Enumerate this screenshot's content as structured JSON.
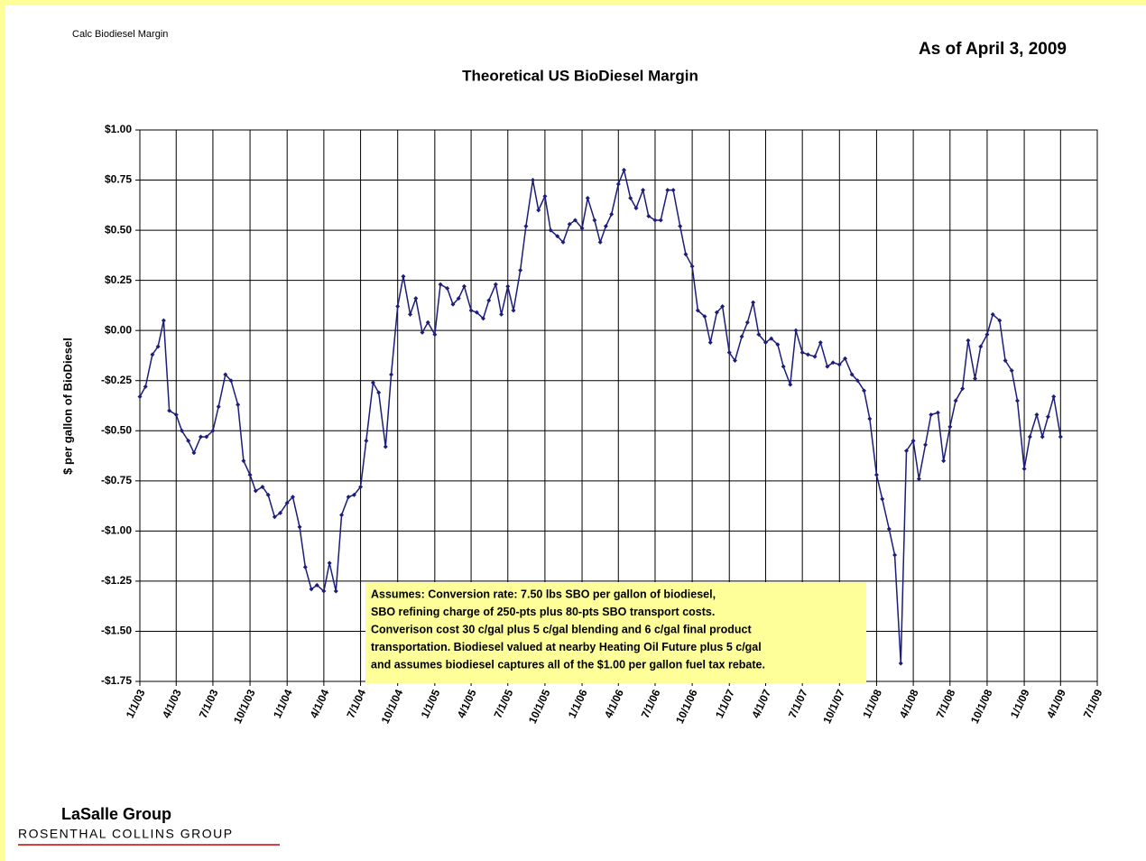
{
  "header": {
    "note": "Calc Biodiesel Margin",
    "as_of": "As of April 3, 2009"
  },
  "chart_data": {
    "type": "line",
    "title": "Theoretical US BioDiesel Margin",
    "y_label": "$ per gallon of BioDiesel",
    "annotation": [
      "Assumes: Conversion rate: 7.50 lbs SBO per gallon of biodiesel,",
      "SBO refining charge of 250-pts plus 80-pts SBO transport costs.",
      "Converison cost 30 c/gal plus 5 c/gal blending and 6 c/gal final product",
      "transportation.  Biodiesel valued at nearby Heating Oil Future plus 5 c/gal",
      "and assumes biodiesel captures all of the $1.00 per gallon fuel tax rebate."
    ],
    "x": [
      "2003-01-01",
      "2003-01-15",
      "2003-02-01",
      "2003-02-15",
      "2003-03-01",
      "2003-03-15",
      "2003-04-01",
      "2003-04-15",
      "2003-05-01",
      "2003-05-15",
      "2003-06-01",
      "2003-06-15",
      "2003-07-01",
      "2003-07-15",
      "2003-08-01",
      "2003-08-15",
      "2003-09-01",
      "2003-09-15",
      "2003-10-01",
      "2003-10-15",
      "2003-11-01",
      "2003-11-15",
      "2003-12-01",
      "2003-12-15",
      "2004-01-01",
      "2004-01-15",
      "2004-02-01",
      "2004-02-15",
      "2004-03-01",
      "2004-03-15",
      "2004-04-01",
      "2004-04-15",
      "2004-05-01",
      "2004-05-15",
      "2004-06-01",
      "2004-06-15",
      "2004-07-01",
      "2004-07-15",
      "2004-08-01",
      "2004-08-15",
      "2004-09-01",
      "2004-09-15",
      "2004-10-01",
      "2004-10-15",
      "2004-11-01",
      "2004-11-15",
      "2004-12-01",
      "2004-12-15",
      "2005-01-01",
      "2005-01-15",
      "2005-02-01",
      "2005-02-15",
      "2005-03-01",
      "2005-03-15",
      "2005-04-01",
      "2005-04-15",
      "2005-05-01",
      "2005-05-15",
      "2005-06-01",
      "2005-06-15",
      "2005-07-01",
      "2005-07-15",
      "2005-08-01",
      "2005-08-15",
      "2005-09-01",
      "2005-09-15",
      "2005-10-01",
      "2005-10-15",
      "2005-11-01",
      "2005-11-15",
      "2005-12-01",
      "2005-12-15",
      "2006-01-01",
      "2006-01-15",
      "2006-02-01",
      "2006-02-15",
      "2006-03-01",
      "2006-03-15",
      "2006-04-01",
      "2006-04-15",
      "2006-05-01",
      "2006-05-15",
      "2006-06-01",
      "2006-06-15",
      "2006-07-01",
      "2006-07-15",
      "2006-08-01",
      "2006-08-15",
      "2006-09-01",
      "2006-09-15",
      "2006-10-01",
      "2006-10-15",
      "2006-11-01",
      "2006-11-15",
      "2006-12-01",
      "2006-12-15",
      "2007-01-01",
      "2007-01-15",
      "2007-02-01",
      "2007-02-15",
      "2007-03-01",
      "2007-03-15",
      "2007-04-01",
      "2007-04-15",
      "2007-05-01",
      "2007-05-15",
      "2007-06-01",
      "2007-06-15",
      "2007-07-01",
      "2007-07-15",
      "2007-08-01",
      "2007-08-15",
      "2007-09-01",
      "2007-09-15",
      "2007-10-01",
      "2007-10-15",
      "2007-11-01",
      "2007-11-15",
      "2007-12-01",
      "2007-12-15",
      "2008-01-01",
      "2008-01-15",
      "2008-02-01",
      "2008-02-15",
      "2008-03-01",
      "2008-03-15",
      "2008-04-01",
      "2008-04-15",
      "2008-05-01",
      "2008-05-15",
      "2008-06-01",
      "2008-06-15",
      "2008-07-01",
      "2008-07-15",
      "2008-08-01",
      "2008-08-15",
      "2008-09-01",
      "2008-09-15",
      "2008-10-01",
      "2008-10-15",
      "2008-11-01",
      "2008-11-15",
      "2008-12-01",
      "2008-12-15",
      "2009-01-01",
      "2009-01-15",
      "2009-02-01",
      "2009-02-15",
      "2009-03-01",
      "2009-03-15",
      "2009-04-01"
    ],
    "series": [
      {
        "color": "#1c1c7a",
        "values": [
          -0.33,
          -0.28,
          -0.12,
          -0.08,
          0.05,
          -0.4,
          -0.42,
          -0.5,
          -0.55,
          -0.61,
          -0.53,
          -0.53,
          -0.5,
          -0.38,
          -0.22,
          -0.25,
          -0.37,
          -0.65,
          -0.72,
          -0.8,
          -0.78,
          -0.82,
          -0.93,
          -0.91,
          -0.86,
          -0.83,
          -0.98,
          -1.18,
          -1.29,
          -1.27,
          -1.3,
          -1.16,
          -1.3,
          -0.92,
          -0.83,
          -0.82,
          -0.78,
          -0.55,
          -0.26,
          -0.31,
          -0.58,
          -0.22,
          0.12,
          0.27,
          0.08,
          0.16,
          -0.01,
          0.04,
          -0.02,
          0.23,
          0.21,
          0.13,
          0.16,
          0.22,
          0.1,
          0.09,
          0.06,
          0.15,
          0.23,
          0.08,
          0.22,
          0.1,
          0.3,
          0.52,
          0.75,
          0.6,
          0.67,
          0.5,
          0.47,
          0.44,
          0.53,
          0.55,
          0.51,
          0.66,
          0.55,
          0.44,
          0.52,
          0.58,
          0.73,
          0.8,
          0.66,
          0.61,
          0.7,
          0.57,
          0.55,
          0.55,
          0.7,
          0.7,
          0.52,
          0.38,
          0.32,
          0.1,
          0.07,
          -0.06,
          0.09,
          0.12,
          -0.11,
          -0.15,
          -0.03,
          0.04,
          0.14,
          -0.02,
          -0.06,
          -0.04,
          -0.07,
          -0.18,
          -0.27,
          0.0,
          -0.11,
          -0.12,
          -0.13,
          -0.06,
          -0.18,
          -0.16,
          -0.17,
          -0.14,
          -0.22,
          -0.25,
          -0.3,
          -0.44,
          -0.72,
          -0.84,
          -0.99,
          -1.12,
          -1.66,
          -0.6,
          -0.55,
          -0.74,
          -0.57,
          -0.42,
          -0.41,
          -0.65,
          -0.48,
          -0.35,
          -0.29,
          -0.05,
          -0.24,
          -0.08,
          -0.02,
          0.08,
          0.05,
          -0.15,
          -0.2,
          -0.35,
          -0.69,
          -0.53,
          -0.42,
          -0.53,
          -0.43,
          -0.33,
          -0.53
        ]
      }
    ],
    "xlim": [
      "2003-01-01",
      "2009-07-01"
    ],
    "xticks": [
      {
        "value": "2003-01-01",
        "label": "1/1/03"
      },
      {
        "value": "2003-04-01",
        "label": "4/1/03"
      },
      {
        "value": "2003-07-01",
        "label": "7/1/03"
      },
      {
        "value": "2003-10-01",
        "label": "10/1/03"
      },
      {
        "value": "2004-01-01",
        "label": "1/1/04"
      },
      {
        "value": "2004-04-01",
        "label": "4/1/04"
      },
      {
        "value": "2004-07-01",
        "label": "7/1/04"
      },
      {
        "value": "2004-10-01",
        "label": "10/1/04"
      },
      {
        "value": "2005-01-01",
        "label": "1/1/05"
      },
      {
        "value": "2005-04-01",
        "label": "4/1/05"
      },
      {
        "value": "2005-07-01",
        "label": "7/1/05"
      },
      {
        "value": "2005-10-01",
        "label": "10/1/05"
      },
      {
        "value": "2006-01-01",
        "label": "1/1/06"
      },
      {
        "value": "2006-04-01",
        "label": "4/1/06"
      },
      {
        "value": "2006-07-01",
        "label": "7/1/06"
      },
      {
        "value": "2006-10-01",
        "label": "10/1/06"
      },
      {
        "value": "2007-01-01",
        "label": "1/1/07"
      },
      {
        "value": "2007-04-01",
        "label": "4/1/07"
      },
      {
        "value": "2007-07-01",
        "label": "7/1/07"
      },
      {
        "value": "2007-10-01",
        "label": "10/1/07"
      },
      {
        "value": "2008-01-01",
        "label": "1/1/08"
      },
      {
        "value": "2008-04-01",
        "label": "4/1/08"
      },
      {
        "value": "2008-07-01",
        "label": "7/1/08"
      },
      {
        "value": "2008-10-01",
        "label": "10/1/08"
      },
      {
        "value": "2009-01-01",
        "label": "1/1/09"
      },
      {
        "value": "2009-04-01",
        "label": "4/1/09"
      },
      {
        "value": "2009-07-01",
        "label": "7/1/09"
      }
    ],
    "ylim": [
      -1.75,
      1.0
    ],
    "yticks": [
      {
        "value": 1.0,
        "label": "$1.00"
      },
      {
        "value": 0.75,
        "label": "$0.75"
      },
      {
        "value": 0.5,
        "label": "$0.50"
      },
      {
        "value": 0.25,
        "label": "$0.25"
      },
      {
        "value": 0.0,
        "label": "$0.00"
      },
      {
        "value": -0.25,
        "label": "-$0.25"
      },
      {
        "value": -0.5,
        "label": "-$0.50"
      },
      {
        "value": -0.75,
        "label": "-$0.75"
      },
      {
        "value": -1.0,
        "label": "-$1.00"
      },
      {
        "value": -1.25,
        "label": "-$1.25"
      },
      {
        "value": -1.5,
        "label": "-$1.50"
      },
      {
        "value": -1.75,
        "label": "-$1.75"
      }
    ],
    "grid": true
  },
  "footer": {
    "company": "LaSalle Group",
    "parent": "ROSENTHAL COLLINS GROUP"
  }
}
